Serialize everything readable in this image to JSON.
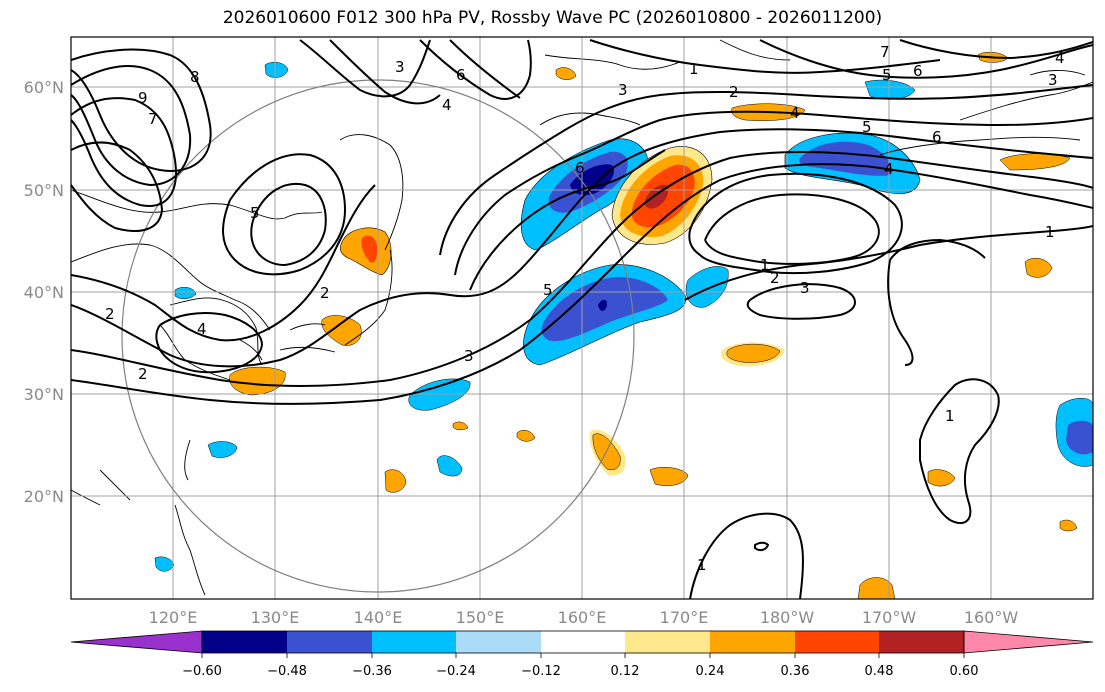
{
  "title": "2026010600 F012 300 hPa PV, Rossby Wave PC (2026010800 - 2026011200)",
  "x_ticks": [
    "120°E",
    "130°E",
    "140°E",
    "150°E",
    "160°E",
    "170°E",
    "180°W",
    "170°W",
    "160°W"
  ],
  "y_ticks": [
    "60°N",
    "50°N",
    "40°N",
    "30°N",
    "20°N"
  ],
  "colorbar": {
    "labels": [
      "−0.60",
      "−0.48",
      "−0.36",
      "−0.24",
      "−0.12",
      "0.12",
      "0.24",
      "0.36",
      "0.48",
      "0.60"
    ],
    "under_color": "#9932cc",
    "over_color": "#ff88aa",
    "colors": [
      "#00008b",
      "#3a52d2",
      "#00bfff",
      "#aadcfa",
      "#ffffff",
      "#ffe88c",
      "#ffa500",
      "#ff4500",
      "#b22222"
    ]
  },
  "contour_labels": [
    {
      "text": "8"
    },
    {
      "text": "9"
    },
    {
      "text": "7"
    },
    {
      "text": "3"
    },
    {
      "text": "6"
    },
    {
      "text": "4"
    },
    {
      "text": "5"
    },
    {
      "text": "2"
    },
    {
      "text": "4"
    },
    {
      "text": "2"
    },
    {
      "text": "2"
    },
    {
      "text": "3"
    },
    {
      "text": "5"
    },
    {
      "text": "6"
    },
    {
      "text": "1"
    },
    {
      "text": "2"
    },
    {
      "text": "3"
    },
    {
      "text": "4"
    },
    {
      "text": "5"
    },
    {
      "text": "6"
    },
    {
      "text": "7"
    },
    {
      "text": "5"
    },
    {
      "text": "6"
    },
    {
      "text": "4"
    },
    {
      "text": "1"
    },
    {
      "text": "1"
    },
    {
      "text": "2"
    },
    {
      "text": "3"
    },
    {
      "text": "1"
    },
    {
      "text": "1"
    },
    {
      "text": "4"
    },
    {
      "text": "3"
    }
  ]
}
